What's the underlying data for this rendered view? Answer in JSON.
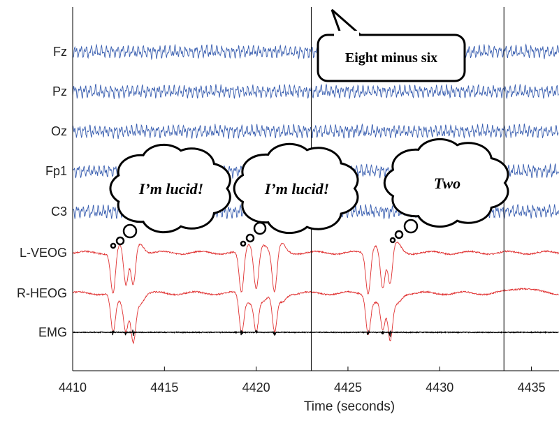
{
  "chart_data": {
    "type": "line",
    "xlabel": "Time (seconds)",
    "xlim": [
      4410,
      4436.5
    ],
    "x_ticks": [
      "4410",
      "4415",
      "4420",
      "4425",
      "4430",
      "4435"
    ],
    "x_tick_values": [
      4410,
      4415,
      4420,
      4425,
      4430,
      4435
    ],
    "event_markers": [
      4423,
      4433.5
    ],
    "grid": false,
    "channels": [
      {
        "name": "Fz",
        "color": "#3a5fb0",
        "kind": "eeg"
      },
      {
        "name": "Pz",
        "color": "#3a5fb0",
        "kind": "eeg"
      },
      {
        "name": "Oz",
        "color": "#3a5fb0",
        "kind": "eeg"
      },
      {
        "name": "Fp1",
        "color": "#3a5fb0",
        "kind": "eeg"
      },
      {
        "name": "C3",
        "color": "#3a5fb0",
        "kind": "eeg"
      },
      {
        "name": "L-VEOG",
        "color": "#e03030",
        "kind": "eog"
      },
      {
        "name": "R-HEOG",
        "color": "#e03030",
        "kind": "eog"
      },
      {
        "name": "EMG",
        "color": "#000000",
        "kind": "emg"
      }
    ],
    "eye_movement_events": [
      {
        "times": [
          4412.2,
          4412.9,
          4413.3
        ]
      },
      {
        "times": [
          4419.2,
          4420.0,
          4421.0
        ]
      },
      {
        "times": [
          4426.1,
          4426.9,
          4427.3
        ]
      }
    ],
    "annotations": [
      {
        "kind": "speech",
        "text": "Eight minus six",
        "time": 4423
      },
      {
        "kind": "thought",
        "text": "I’m lucid!",
        "time": 4413
      },
      {
        "kind": "thought",
        "text": "I’m lucid!",
        "time": 4420
      },
      {
        "kind": "thought",
        "text": "Two",
        "time": 4427.5
      }
    ]
  }
}
